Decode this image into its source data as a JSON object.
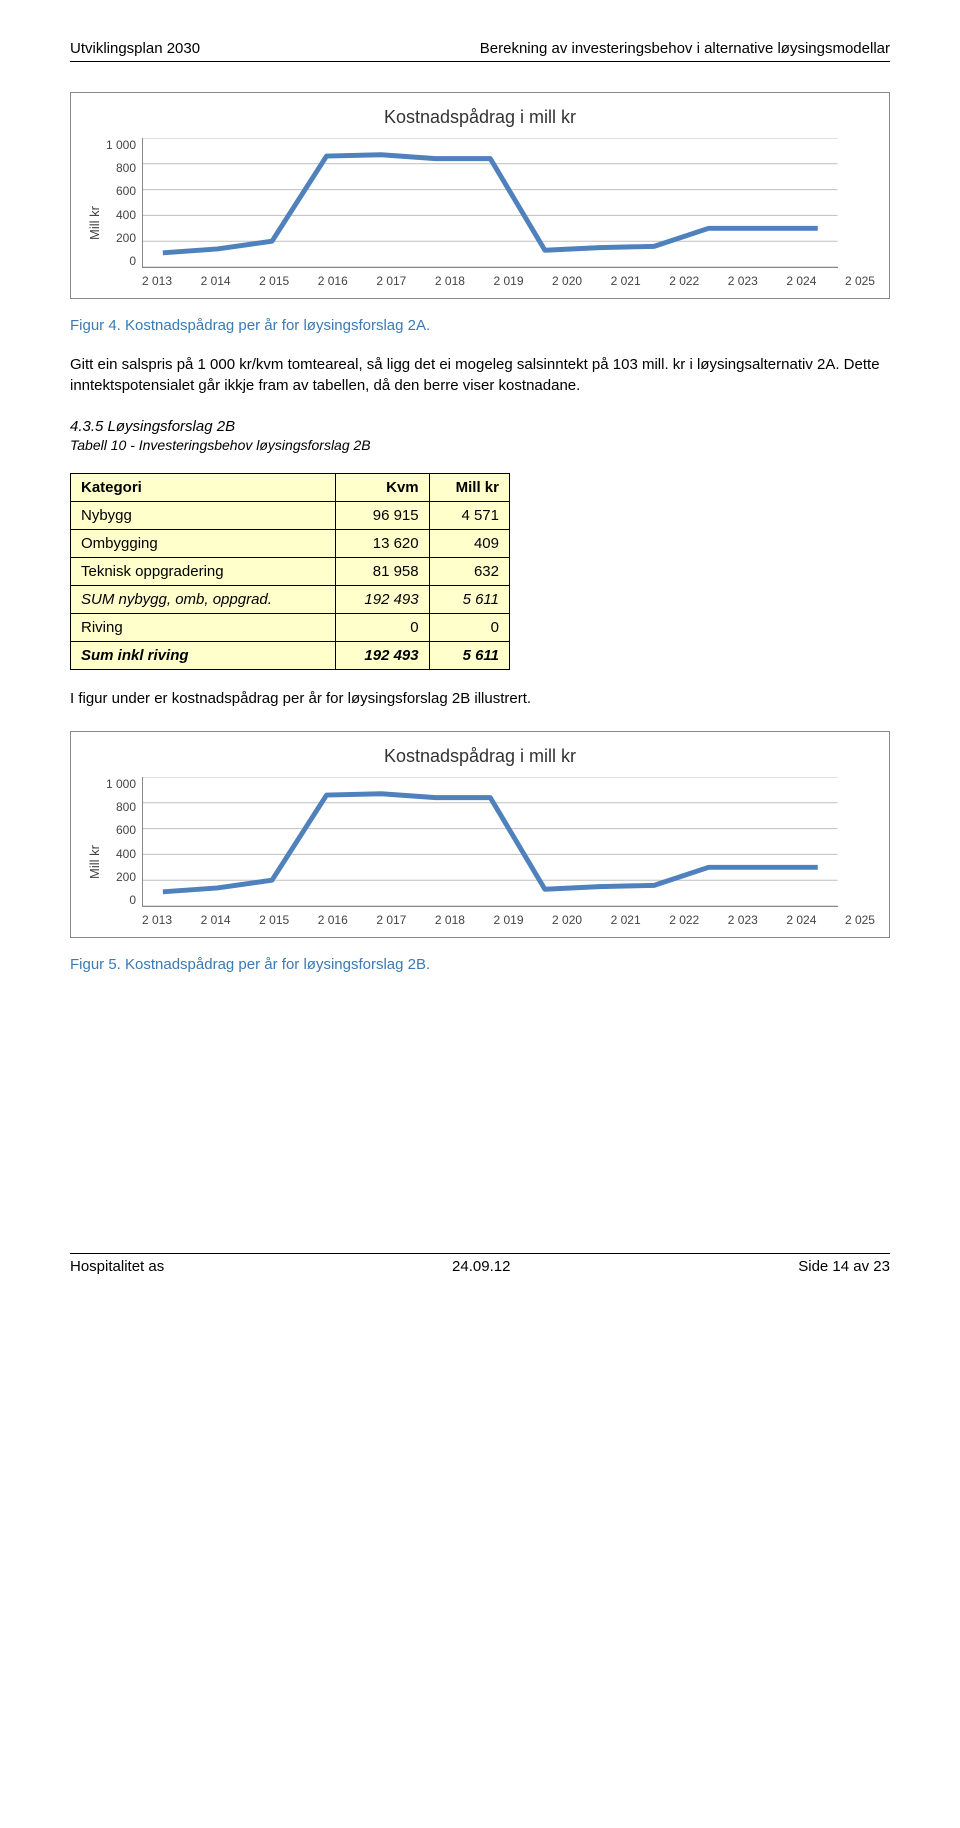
{
  "header": {
    "left": "Utviklingsplan 2030",
    "right": "Berekning av investeringsbehov i alternative løysingsmodellar"
  },
  "chart1": {
    "title": "Kostnadspådrag i mill kr",
    "ylabel": "Mill kr",
    "ylim": [
      0,
      1000
    ],
    "ytick_step": 200,
    "yticks": [
      "1 000",
      "800",
      "600",
      "400",
      "200",
      "0"
    ],
    "xticks": [
      "2 013",
      "2 014",
      "2 015",
      "2 016",
      "2 017",
      "2 018",
      "2 019",
      "2 020",
      "2 021",
      "2 022",
      "2 023",
      "2 024",
      "2 025"
    ],
    "values": [
      110,
      140,
      200,
      860,
      870,
      840,
      840,
      130,
      150,
      160,
      300,
      300,
      300
    ],
    "line_color": "#4f81bd",
    "line_width": 5,
    "grid_color": "#bfbfbf",
    "background_color": "#ffffff"
  },
  "caption1": "Figur 4. Kostnadspådrag per år for løysingsforslag 2A.",
  "para1": "Gitt ein salspris på 1 000 kr/kvm tomteareal, så ligg det ei mogeleg salsinntekt på 103 mill. kr i løysingsalternativ 2A. Dette inntektspotensialet går ikkje fram av tabellen, då den berre viser kostnadane.",
  "section": "4.3.5  Løysingsforslag 2B",
  "tablecap": "Tabell 10 - Investeringsbehov løysingsforslag 2B",
  "table": {
    "columns": [
      "Kategori",
      "Kvm",
      "Mill kr"
    ],
    "rows": [
      {
        "label": "Nybygg",
        "kvm": "96 915",
        "mill": "4 571",
        "style": "normal"
      },
      {
        "label": "Ombygging",
        "kvm": "13 620",
        "mill": "409",
        "style": "normal"
      },
      {
        "label": "Teknisk oppgradering",
        "kvm": "81 958",
        "mill": "632",
        "style": "normal"
      },
      {
        "label": "SUM nybygg, omb, oppgrad.",
        "kvm": "192 493",
        "mill": "5 611",
        "style": "italic"
      },
      {
        "label": "Riving",
        "kvm": "0",
        "mill": "0",
        "style": "normal"
      },
      {
        "label": "Sum inkl riving",
        "kvm": "192 493",
        "mill": "5 611",
        "style": "bold"
      }
    ],
    "bg_color": "#ffffcc",
    "border_color": "#000000"
  },
  "para2": "I figur under er kostnadspådrag per år for løysingsforslag 2B illustrert.",
  "chart2": {
    "title": "Kostnadspådrag i mill kr",
    "ylabel": "Mill kr",
    "ylim": [
      0,
      1000
    ],
    "ytick_step": 200,
    "yticks": [
      "1 000",
      "800",
      "600",
      "400",
      "200",
      "0"
    ],
    "xticks": [
      "2 013",
      "2 014",
      "2 015",
      "2 016",
      "2 017",
      "2 018",
      "2 019",
      "2 020",
      "2 021",
      "2 022",
      "2 023",
      "2 024",
      "2 025"
    ],
    "values": [
      110,
      140,
      200,
      860,
      870,
      840,
      840,
      130,
      150,
      160,
      300,
      300,
      300
    ],
    "line_color": "#4f81bd",
    "line_width": 5,
    "grid_color": "#bfbfbf",
    "background_color": "#ffffff"
  },
  "caption2": "Figur 5. Kostnadspådrag per år for løysingsforslag 2B.",
  "footer": {
    "left": "Hospitalitet as",
    "center": "24.09.12",
    "right": "Side 14 av 23"
  }
}
